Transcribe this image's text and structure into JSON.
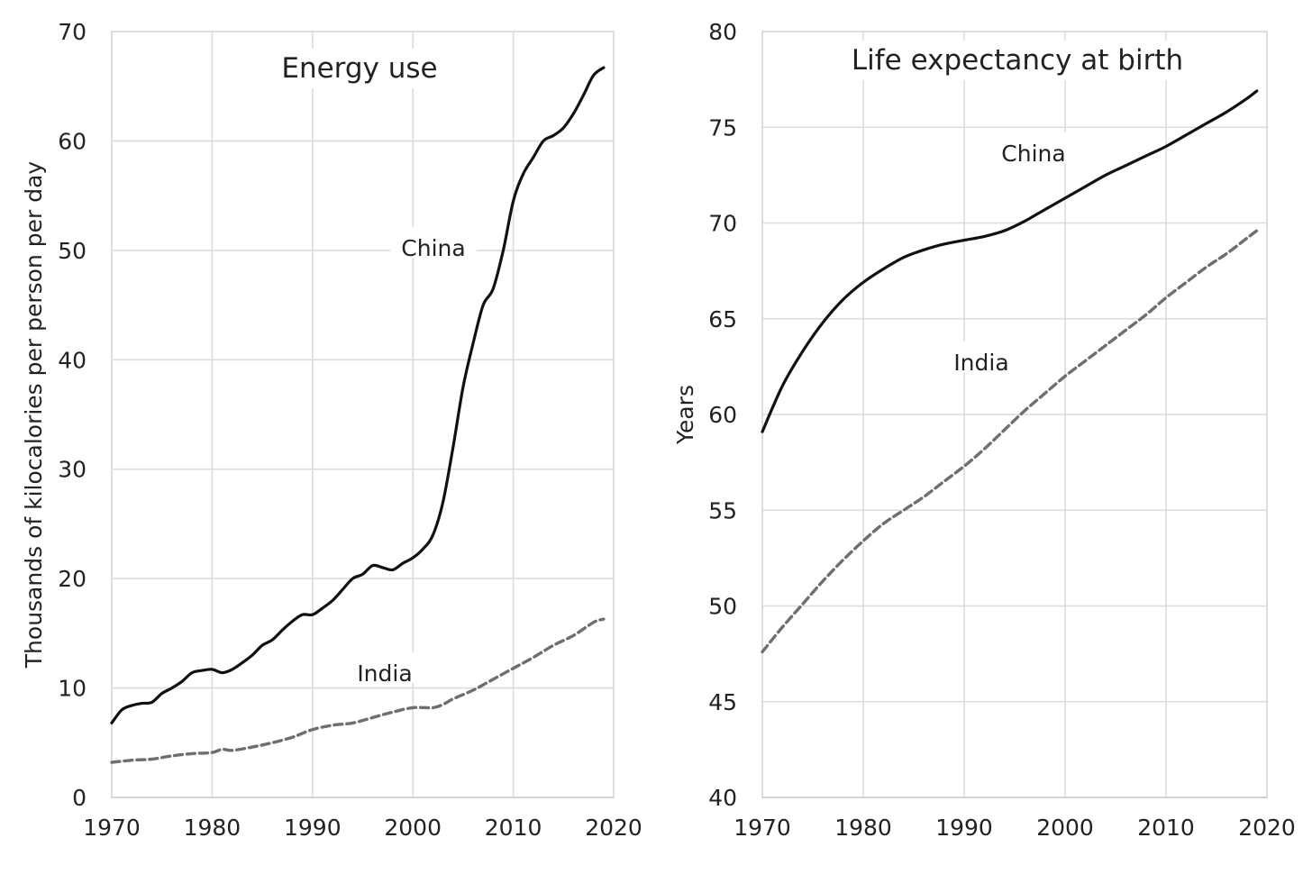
{
  "chart_data": [
    {
      "type": "line",
      "title": "Energy use",
      "xlabel": "",
      "ylabel": "Thousands of kilocalories per person per day",
      "xlim": [
        1970,
        2020
      ],
      "ylim": [
        0,
        70
      ],
      "xticks": [
        1970,
        1980,
        1990,
        2000,
        2010,
        2020
      ],
      "yticks": [
        0,
        10,
        20,
        30,
        40,
        50,
        60,
        70
      ],
      "grid": true,
      "series": [
        {
          "name": "China",
          "style": "solid",
          "color": "#111111",
          "x": [
            1970,
            1971,
            1972,
            1973,
            1974,
            1975,
            1976,
            1977,
            1978,
            1979,
            1980,
            1981,
            1982,
            1983,
            1984,
            1985,
            1986,
            1987,
            1988,
            1989,
            1990,
            1991,
            1992,
            1993,
            1994,
            1995,
            1996,
            1997,
            1998,
            1999,
            2000,
            2001,
            2002,
            2003,
            2004,
            2005,
            2006,
            2007,
            2008,
            2009,
            2010,
            2011,
            2012,
            2013,
            2014,
            2015,
            2016,
            2017,
            2018,
            2019
          ],
          "y": [
            6.8,
            8.0,
            8.4,
            8.6,
            8.7,
            9.5,
            10.0,
            10.6,
            11.4,
            11.6,
            11.7,
            11.4,
            11.7,
            12.3,
            13.0,
            13.9,
            14.4,
            15.3,
            16.1,
            16.7,
            16.7,
            17.3,
            18.0,
            19.0,
            20.0,
            20.4,
            21.2,
            21.0,
            20.8,
            21.4,
            21.9,
            22.7,
            24.0,
            27.0,
            32.0,
            37.5,
            41.5,
            45.0,
            46.5,
            50.0,
            54.5,
            57.0,
            58.5,
            60.0,
            60.5,
            61.2,
            62.5,
            64.2,
            66.0,
            66.7
          ]
        },
        {
          "name": "India",
          "style": "dashed",
          "color": "#6e6e6e",
          "x": [
            1970,
            1972,
            1974,
            1976,
            1978,
            1980,
            1981,
            1982,
            1984,
            1986,
            1988,
            1990,
            1992,
            1994,
            1996,
            1998,
            2000,
            2002,
            2003,
            2004,
            2006,
            2008,
            2010,
            2012,
            2014,
            2016,
            2018,
            2019
          ],
          "y": [
            3.2,
            3.4,
            3.5,
            3.8,
            4.0,
            4.1,
            4.4,
            4.3,
            4.6,
            5.0,
            5.5,
            6.2,
            6.6,
            6.8,
            7.3,
            7.8,
            8.2,
            8.2,
            8.5,
            9.0,
            9.8,
            10.8,
            11.8,
            12.8,
            13.9,
            14.8,
            16.0,
            16.3
          ]
        }
      ]
    },
    {
      "type": "line",
      "title": "Life expectancy at birth",
      "xlabel": "",
      "ylabel": "Years",
      "xlim": [
        1970,
        2020
      ],
      "ylim": [
        40,
        80
      ],
      "xticks": [
        1970,
        1980,
        1990,
        2000,
        2010,
        2020
      ],
      "yticks": [
        40,
        45,
        50,
        55,
        60,
        65,
        70,
        75,
        80
      ],
      "grid": true,
      "series": [
        {
          "name": "China",
          "style": "solid",
          "color": "#111111",
          "x": [
            1970,
            1972,
            1974,
            1976,
            1978,
            1980,
            1982,
            1984,
            1986,
            1988,
            1990,
            1992,
            1994,
            1996,
            1998,
            2000,
            2002,
            2004,
            2006,
            2008,
            2010,
            2012,
            2014,
            2016,
            2018,
            2019
          ],
          "y": [
            59.1,
            61.5,
            63.3,
            64.8,
            66.0,
            66.9,
            67.6,
            68.2,
            68.6,
            68.9,
            69.1,
            69.3,
            69.6,
            70.1,
            70.7,
            71.3,
            71.9,
            72.5,
            73.0,
            73.5,
            74.0,
            74.6,
            75.2,
            75.8,
            76.5,
            76.9
          ]
        },
        {
          "name": "India",
          "style": "dashed",
          "color": "#6e6e6e",
          "x": [
            1970,
            1972,
            1974,
            1976,
            1978,
            1980,
            1982,
            1984,
            1986,
            1988,
            1990,
            1992,
            1994,
            1996,
            1998,
            2000,
            2002,
            2004,
            2006,
            2008,
            2010,
            2012,
            2014,
            2016,
            2018,
            2019
          ],
          "y": [
            47.6,
            48.9,
            50.1,
            51.3,
            52.4,
            53.4,
            54.3,
            55.0,
            55.7,
            56.5,
            57.3,
            58.2,
            59.2,
            60.2,
            61.1,
            62.0,
            62.8,
            63.6,
            64.4,
            65.2,
            66.1,
            66.9,
            67.7,
            68.4,
            69.2,
            69.6
          ]
        }
      ]
    }
  ]
}
